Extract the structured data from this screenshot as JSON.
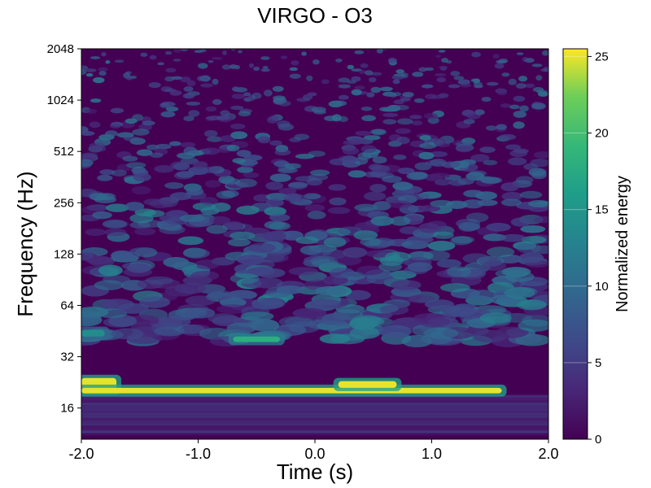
{
  "chart_data": {
    "type": "heatmap",
    "title": "VIRGO - O3",
    "xlabel": "Time (s)",
    "ylabel": "Frequency (Hz)",
    "x_ticks": [
      "-2.0",
      "-1.0",
      "0.0",
      "1.0",
      "2.0"
    ],
    "xlim": [
      -2.0,
      2.0
    ],
    "y_scale": "log2",
    "y_ticks": [
      "16",
      "32",
      "64",
      "128",
      "256",
      "512",
      "1024",
      "2048"
    ],
    "ylim": [
      10.5,
      2048
    ],
    "colorbar": {
      "label": "Normalized energy",
      "ticks": [
        "0",
        "5",
        "10",
        "15",
        "20",
        "25"
      ],
      "range": [
        0,
        25.5
      ],
      "colormap": "viridis"
    },
    "features": [
      {
        "t_start": -2.0,
        "t_end": -1.7,
        "f_low": 20,
        "f_high": 24,
        "energy": 25
      },
      {
        "t_start": -2.0,
        "t_end": 1.6,
        "f_low": 19.5,
        "f_high": 21,
        "energy": 25
      },
      {
        "t_start": 0.2,
        "t_end": 0.7,
        "f_low": 21,
        "f_high": 23,
        "energy": 25
      },
      {
        "t_start": -0.7,
        "t_end": -0.3,
        "f_low": 39,
        "f_high": 42,
        "energy": 18
      },
      {
        "t_start": -2.0,
        "t_end": -1.8,
        "f_low": 42,
        "f_high": 46,
        "energy": 14
      }
    ]
  }
}
